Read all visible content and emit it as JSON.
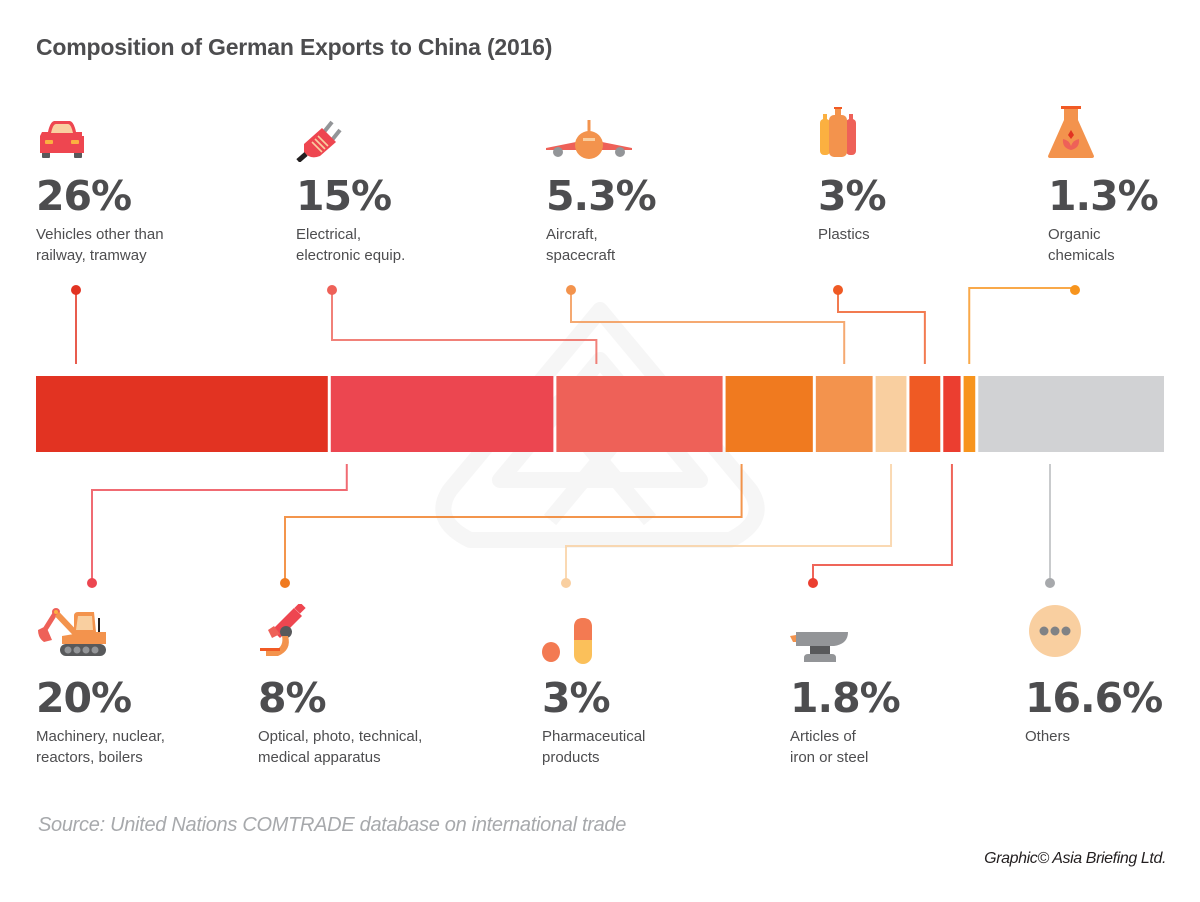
{
  "chart_data": {
    "type": "bar",
    "subtype": "stacked-horizontal-100",
    "title": "Composition of German Exports to China (2016)",
    "xlabel": "",
    "ylabel": "",
    "unit": "%",
    "xlim": [
      0,
      100
    ],
    "grid": false,
    "legend": "none (callout labels above and below bar)",
    "series": [
      {
        "name": "Vehicles other than railway, tramway",
        "value": 26,
        "label": "26%",
        "color": "#e23322",
        "position": "top",
        "icon": "car-icon"
      },
      {
        "name": "Machinery, nuclear, reactors, boilers",
        "value": 20,
        "label": "20%",
        "color": "#ec4650",
        "position": "bottom",
        "icon": "excavator-icon"
      },
      {
        "name": "Electrical, electronic equip.",
        "value": 15,
        "label": "15%",
        "color": "#ee6158",
        "position": "top",
        "icon": "plug-icon"
      },
      {
        "name": "Optical, photo, technical, medical apparatus",
        "value": 8,
        "label": "8%",
        "color": "#f07a1f",
        "position": "bottom",
        "icon": "microscope-icon"
      },
      {
        "name": "Aircraft, spacecraft",
        "value": 5.3,
        "label": "5.3%",
        "color": "#f3934d",
        "position": "top",
        "icon": "airplane-icon"
      },
      {
        "name": "Pharmaceutical products",
        "value": 3,
        "label": "3%",
        "color": "#f9cfa0",
        "position": "bottom",
        "icon": "pills-icon"
      },
      {
        "name": "Plastics",
        "value": 3,
        "label": "3%",
        "color": "#ef5a24",
        "position": "top",
        "icon": "bottles-icon"
      },
      {
        "name": "Articles of iron or steel",
        "value": 1.8,
        "label": "1.8%",
        "color": "#eb3e30",
        "position": "bottom",
        "icon": "anvil-icon"
      },
      {
        "name": "Organic chemicals",
        "value": 1.3,
        "label": "1.3%",
        "color": "#f7941d",
        "position": "top",
        "icon": "flask-icon"
      },
      {
        "name": "Others",
        "value": 16.6,
        "label": "16.6%",
        "color": "#d1d2d4",
        "position": "bottom",
        "icon": "more-dots-icon"
      }
    ],
    "annotations": []
  },
  "top_labels": [
    {
      "pct": "26%",
      "label": "Vehicles other than\nrailway, tramway"
    },
    {
      "pct": "15%",
      "label": "Electrical,\nelectronic equip."
    },
    {
      "pct": "5.3%",
      "label": "Aircraft,\nspacecraft"
    },
    {
      "pct": "3%",
      "label": "Plastics"
    },
    {
      "pct": "1.3%",
      "label": "Organic\nchemicals"
    }
  ],
  "bottom_labels": [
    {
      "pct": "20%",
      "label": "Machinery, nuclear,\nreactors, boilers"
    },
    {
      "pct": "8%",
      "label": "Optical, photo, technical,\nmedical apparatus"
    },
    {
      "pct": "3%",
      "label": "Pharmaceutical\nproducts"
    },
    {
      "pct": "1.8%",
      "label": "Articles of\niron or steel"
    },
    {
      "pct": "16.6%",
      "label": "Others"
    }
  ],
  "footer": {
    "source": "Source: United Nations COMTRADE database on international trade",
    "credit": "Graphic© Asia Briefing Ltd."
  }
}
